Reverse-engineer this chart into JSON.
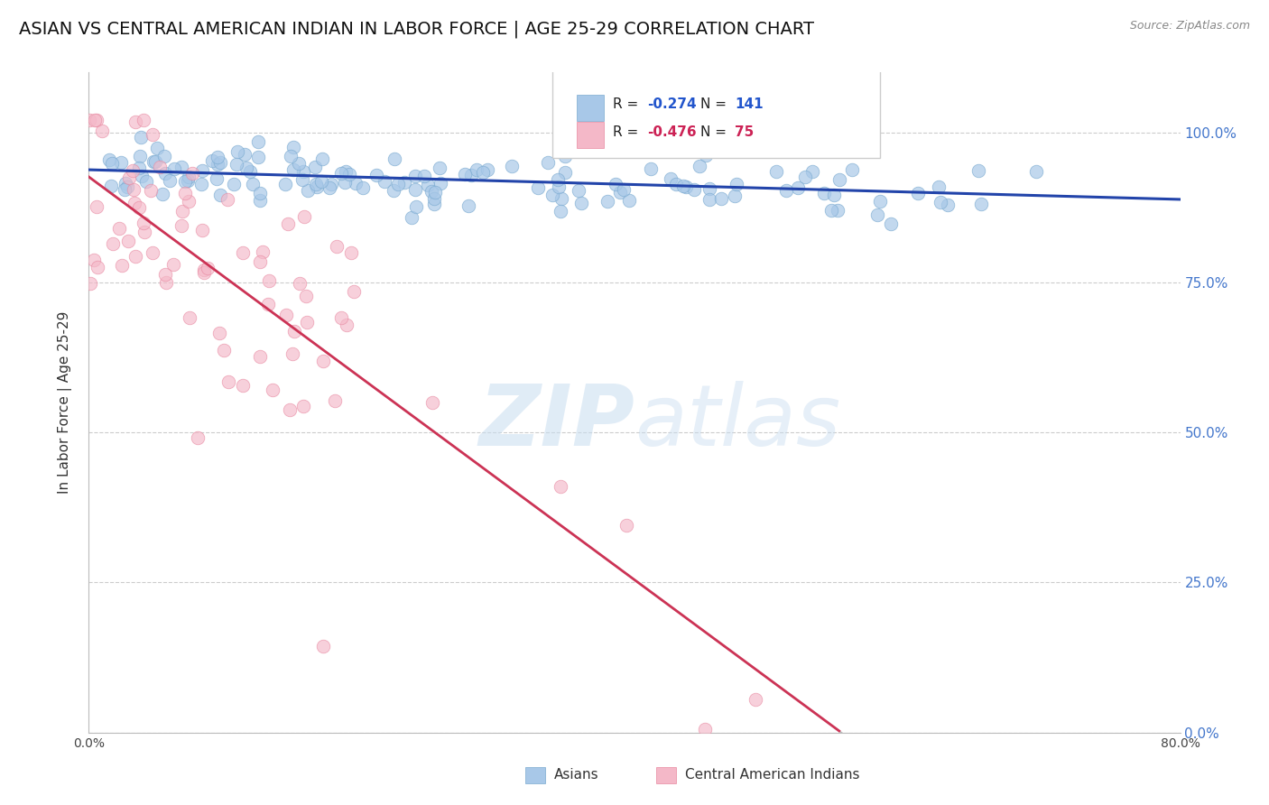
{
  "title": "ASIAN VS CENTRAL AMERICAN INDIAN IN LABOR FORCE | AGE 25-29 CORRELATION CHART",
  "source": "Source: ZipAtlas.com",
  "ylabel": "In Labor Force | Age 25-29",
  "xlim": [
    0.0,
    0.8
  ],
  "ylim": [
    0.0,
    1.1
  ],
  "yticks": [
    0.0,
    0.25,
    0.5,
    0.75,
    1.0
  ],
  "ytick_labels": [
    "0.0%",
    "25.0%",
    "50.0%",
    "75.0%",
    "100.0%"
  ],
  "xticks": [
    0.0,
    0.1,
    0.2,
    0.3,
    0.4,
    0.5,
    0.6,
    0.7,
    0.8
  ],
  "xtick_labels": [
    "0.0%",
    "",
    "",
    "",
    "",
    "",
    "",
    "",
    "80.0%"
  ],
  "background_color": "#ffffff",
  "grid_color": "#cccccc",
  "asian_color": "#a8c8e8",
  "asian_edge_color": "#7aaad0",
  "central_american_color": "#f4b8c8",
  "central_american_edge_color": "#e888a0",
  "asian_line_color": "#2244aa",
  "central_american_line_color": "#cc3355",
  "dashed_line_color": "#bbbbbb",
  "R_asian": -0.274,
  "N_asian": 141,
  "R_central": -0.476,
  "N_central": 75,
  "legend_labels": [
    "Asians",
    "Central American Indians"
  ],
  "watermark_zip": "ZIP",
  "watermark_atlas": "atlas",
  "title_fontsize": 14,
  "axis_label_fontsize": 11,
  "tick_fontsize": 10,
  "legend_fontsize": 11,
  "source_fontsize": 9,
  "r_value_color_blue": "#2255cc",
  "r_value_color_pink": "#cc2255",
  "n_value_color_blue": "#2255cc",
  "n_value_color_pink": "#cc2255"
}
